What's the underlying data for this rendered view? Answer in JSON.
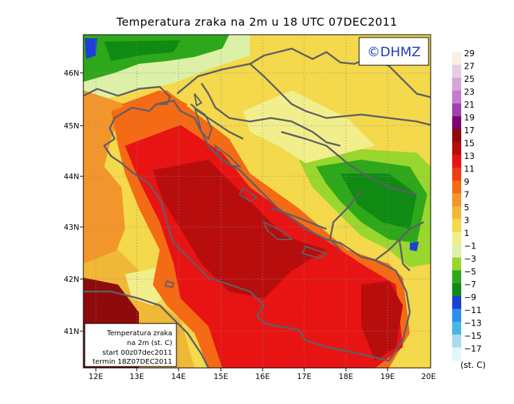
{
  "title": "Temperatura zraka na 2m u 18 UTC 07DEC2011",
  "brand": "©DHMZ",
  "info_box": {
    "line1": "Temperatura zraka",
    "line2": "na 2m (st. C)",
    "line3": "start 00z07dec2011",
    "line4": "termin 18Z07DEC2011"
  },
  "axes": {
    "lat_labels": [
      "46N",
      "45N",
      "44N",
      "43N",
      "42N",
      "41N"
    ],
    "lon_labels": [
      "12E",
      "13E",
      "14E",
      "15E",
      "16E",
      "17E",
      "18E",
      "19E",
      "20E"
    ]
  },
  "colorbar": {
    "unit": "(st. C)",
    "labels": [
      "29",
      "27",
      "25",
      "23",
      "21",
      "19",
      "17",
      "15",
      "13",
      "11",
      "9",
      "7",
      "5",
      "3",
      "1",
      "−1",
      "−3",
      "−5",
      "−7",
      "−9",
      "−11",
      "−13",
      "−15",
      "−17"
    ],
    "colors": [
      "#fbeee4",
      "#e6cde3",
      "#d7a6d9",
      "#c77bcd",
      "#a43fb0",
      "#7e0072",
      "#8f0a0a",
      "#b80d0d",
      "#e81414",
      "#f03c14",
      "#f56a14",
      "#f2962b",
      "#f0b837",
      "#f3d94b",
      "#f2ee8c",
      "#dcf0a8",
      "#99d62e",
      "#2ea81a",
      "#0f8a12",
      "#1e3fd6",
      "#2e8ef0",
      "#4ab6e8",
      "#a9dcea",
      "#e0f7fa"
    ]
  },
  "colors": {
    "coast": "#5f5f66",
    "grid": "#8a8a8a"
  }
}
